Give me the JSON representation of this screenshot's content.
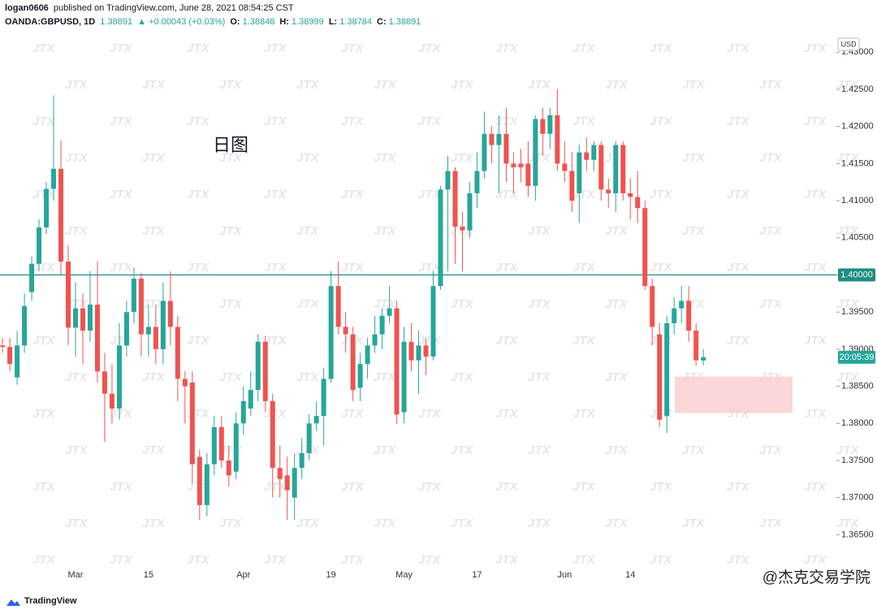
{
  "header": {
    "publisher": "logan0606",
    "published": " published on TradingView.com, June 28, 2021 08:54:25 CST",
    "symbol": "OANDA:GBPUSD, 1D",
    "change": "▲ +0.00043 (+0.03%)",
    "labels": {
      "open": "O:",
      "high": "H:",
      "low": "L:",
      "close": "C:"
    }
  },
  "chart_data": {
    "type": "candlestick",
    "annotation": "日图",
    "y_unit": "USD",
    "categories": [
      null,
      null,
      null,
      null,
      null,
      null,
      null,
      null,
      null,
      null,
      "Mar",
      null,
      null,
      null,
      null,
      null,
      null,
      null,
      null,
      null,
      "15",
      null,
      null,
      null,
      null,
      null,
      null,
      null,
      null,
      null,
      null,
      null,
      null,
      "Apr",
      null,
      null,
      null,
      null,
      null,
      null,
      null,
      null,
      null,
      null,
      null,
      "19",
      null,
      null,
      null,
      null,
      null,
      null,
      null,
      null,
      null,
      "May",
      null,
      null,
      null,
      null,
      null,
      null,
      null,
      null,
      null,
      "17",
      null,
      null,
      null,
      null,
      null,
      null,
      null,
      null,
      null,
      null,
      null,
      "Jun",
      null,
      null,
      null,
      null,
      null,
      null,
      null,
      null,
      "14",
      null,
      null,
      null,
      null,
      null,
      null,
      null,
      null,
      null,
      null
    ],
    "open": [
      1.3905,
      1.3903,
      1.3862,
      1.3905,
      1.3977,
      1.4015,
      1.4064,
      1.4116,
      1.4143,
      1.4018,
      1.3929,
      1.3955,
      1.3925,
      1.396,
      1.387,
      1.384,
      1.382,
      1.3905,
      1.395,
      1.3995,
      1.392,
      1.393,
      1.39,
      1.3965,
      1.393,
      1.386,
      1.3855,
      1.3755,
      1.369,
      1.3745,
      1.3795,
      1.375,
      1.3735,
      1.38,
      1.382,
      1.3845,
      1.391,
      1.383,
      1.374,
      1.373,
      1.37,
      1.374,
      1.376,
      1.38,
      1.381,
      1.386,
      1.3985,
      1.393,
      1.392,
      1.3848,
      1.388,
      1.3905,
      1.392,
      1.3945,
      1.3955,
      1.3815,
      1.391,
      1.3885,
      1.3905,
      1.389,
      1.3985,
      1.4115,
      1.414,
      1.4065,
      1.406,
      1.411,
      1.414,
      1.419,
      1.4175,
      1.419,
      1.415,
      1.415,
      1.415,
      1.412,
      1.421,
      1.419,
      1.4215,
      1.415,
      1.414,
      1.411,
      1.4165,
      1.4155,
      1.4175,
      1.4115,
      1.411,
      1.4175,
      1.411,
      1.4105,
      1.409,
      1.3985,
      1.392,
      1.381,
      1.3935,
      1.3955,
      1.3965,
      1.3925,
      1.38848
    ],
    "high": [
      1.3915,
      1.3915,
      1.3925,
      1.3975,
      1.4025,
      1.4075,
      1.4125,
      1.4242,
      1.4181,
      1.404,
      1.399,
      1.3975,
      1.4005,
      1.4018,
      1.3895,
      1.388,
      1.3935,
      1.3965,
      1.401,
      1.4003,
      1.396,
      1.396,
      1.399,
      1.4005,
      1.3945,
      1.387,
      1.387,
      1.3765,
      1.376,
      1.381,
      1.381,
      1.377,
      1.3815,
      1.385,
      1.387,
      1.392,
      1.3918,
      1.384,
      1.377,
      1.3755,
      1.376,
      1.378,
      1.3812,
      1.383,
      1.3875,
      1.4005,
      1.4018,
      1.395,
      1.393,
      1.3895,
      1.3915,
      1.3945,
      1.3955,
      1.3985,
      1.3965,
      1.393,
      1.3935,
      1.3925,
      1.3915,
      1.4005,
      1.412,
      1.416,
      1.4145,
      1.4085,
      1.4125,
      1.4165,
      1.422,
      1.42,
      1.4215,
      1.4225,
      1.4165,
      1.417,
      1.418,
      1.4215,
      1.4225,
      1.4225,
      1.425,
      1.418,
      1.4165,
      1.4175,
      1.4185,
      1.418,
      1.418,
      1.413,
      1.418,
      1.418,
      1.413,
      1.414,
      1.41,
      1.3995,
      1.3935,
      1.3945,
      1.397,
      1.3985,
      1.3985,
      1.3935,
      1.38999
    ],
    "low": [
      1.3895,
      1.387,
      1.3852,
      1.3895,
      1.3965,
      1.4005,
      1.4055,
      1.41,
      1.4,
      1.3905,
      1.389,
      1.388,
      1.391,
      1.3855,
      1.3775,
      1.38,
      1.3805,
      1.389,
      1.3935,
      1.389,
      1.389,
      1.388,
      1.388,
      1.3905,
      1.383,
      1.38,
      1.372,
      1.367,
      1.3675,
      1.373,
      1.374,
      1.3715,
      1.3725,
      1.3785,
      1.381,
      1.383,
      1.3815,
      1.37,
      1.37,
      1.367,
      1.367,
      1.3725,
      1.375,
      1.379,
      1.377,
      1.3855,
      1.392,
      1.3895,
      1.383,
      1.383,
      1.386,
      1.3895,
      1.39,
      1.3935,
      1.38,
      1.38,
      1.387,
      1.384,
      1.3865,
      1.3885,
      1.398,
      1.4005,
      1.4015,
      1.4005,
      1.405,
      1.409,
      1.413,
      1.415,
      1.411,
      1.4125,
      1.411,
      1.4125,
      1.4105,
      1.41,
      1.416,
      1.417,
      1.414,
      1.4125,
      1.4085,
      1.407,
      1.414,
      1.414,
      1.41,
      1.409,
      1.4085,
      1.41,
      1.4075,
      1.407,
      1.398,
      1.3905,
      1.3795,
      1.3787,
      1.392,
      1.3935,
      1.391,
      1.3878,
      1.38784
    ],
    "close": [
      1.3903,
      1.388,
      1.3905,
      1.3958,
      1.4015,
      1.4064,
      1.4116,
      1.4143,
      1.4018,
      1.3929,
      1.3955,
      1.3925,
      1.396,
      1.387,
      1.384,
      1.382,
      1.3905,
      1.395,
      1.3995,
      1.392,
      1.393,
      1.39,
      1.3965,
      1.393,
      1.386,
      1.385,
      1.3745,
      1.369,
      1.3745,
      1.3795,
      1.375,
      1.373,
      1.38,
      1.383,
      1.3845,
      1.391,
      1.383,
      1.374,
      1.3725,
      1.371,
      1.374,
      1.376,
      1.38,
      1.381,
      1.386,
      1.3985,
      1.393,
      1.392,
      1.3845,
      1.388,
      1.3905,
      1.392,
      1.3945,
      1.3955,
      1.3812,
      1.391,
      1.3885,
      1.3905,
      1.389,
      1.3985,
      1.4115,
      1.414,
      1.4065,
      1.406,
      1.411,
      1.414,
      1.419,
      1.4175,
      1.419,
      1.415,
      1.4145,
      1.4145,
      1.412,
      1.421,
      1.419,
      1.4215,
      1.415,
      1.414,
      1.41,
      1.4165,
      1.4155,
      1.4175,
      1.4115,
      1.411,
      1.4175,
      1.411,
      1.4105,
      1.409,
      1.3985,
      1.393,
      1.3805,
      1.3935,
      1.3955,
      1.3965,
      1.3925,
      1.3885,
      1.38891
    ],
    "up_color": "#26a69a",
    "down_color": "#ef5350",
    "ylim": [
      1.361,
      1.432
    ],
    "yticks": [
      {
        "value": 1.365,
        "label": "1.36500"
      },
      {
        "value": 1.37,
        "label": "1.37000"
      },
      {
        "value": 1.375,
        "label": "1.37500"
      },
      {
        "value": 1.38,
        "label": "1.38000"
      },
      {
        "value": 1.385,
        "label": "1.38500"
      },
      {
        "value": 1.39,
        "label": "1.39000"
      },
      {
        "value": 1.395,
        "label": "1.39500"
      },
      {
        "value": 1.4,
        "label": "1.40000"
      },
      {
        "value": 1.405,
        "label": "1.40500"
      },
      {
        "value": 1.41,
        "label": "1.41000"
      },
      {
        "value": 1.415,
        "label": "1.41500"
      },
      {
        "value": 1.42,
        "label": "1.42000"
      },
      {
        "value": 1.425,
        "label": "1.42500"
      },
      {
        "value": 1.43,
        "label": "1.43000"
      }
    ],
    "grid": false,
    "hline": {
      "value": 1.4,
      "label": "1.40000",
      "color": "#1e8c84"
    },
    "countdown": "20:05:39",
    "zone": [
      1.3814,
      1.3863
    ],
    "zone_color": "#f9c9c9"
  },
  "watermark": "JTX",
  "footer": {
    "brand": "TradingView",
    "credit": "@杰克交易学院"
  }
}
